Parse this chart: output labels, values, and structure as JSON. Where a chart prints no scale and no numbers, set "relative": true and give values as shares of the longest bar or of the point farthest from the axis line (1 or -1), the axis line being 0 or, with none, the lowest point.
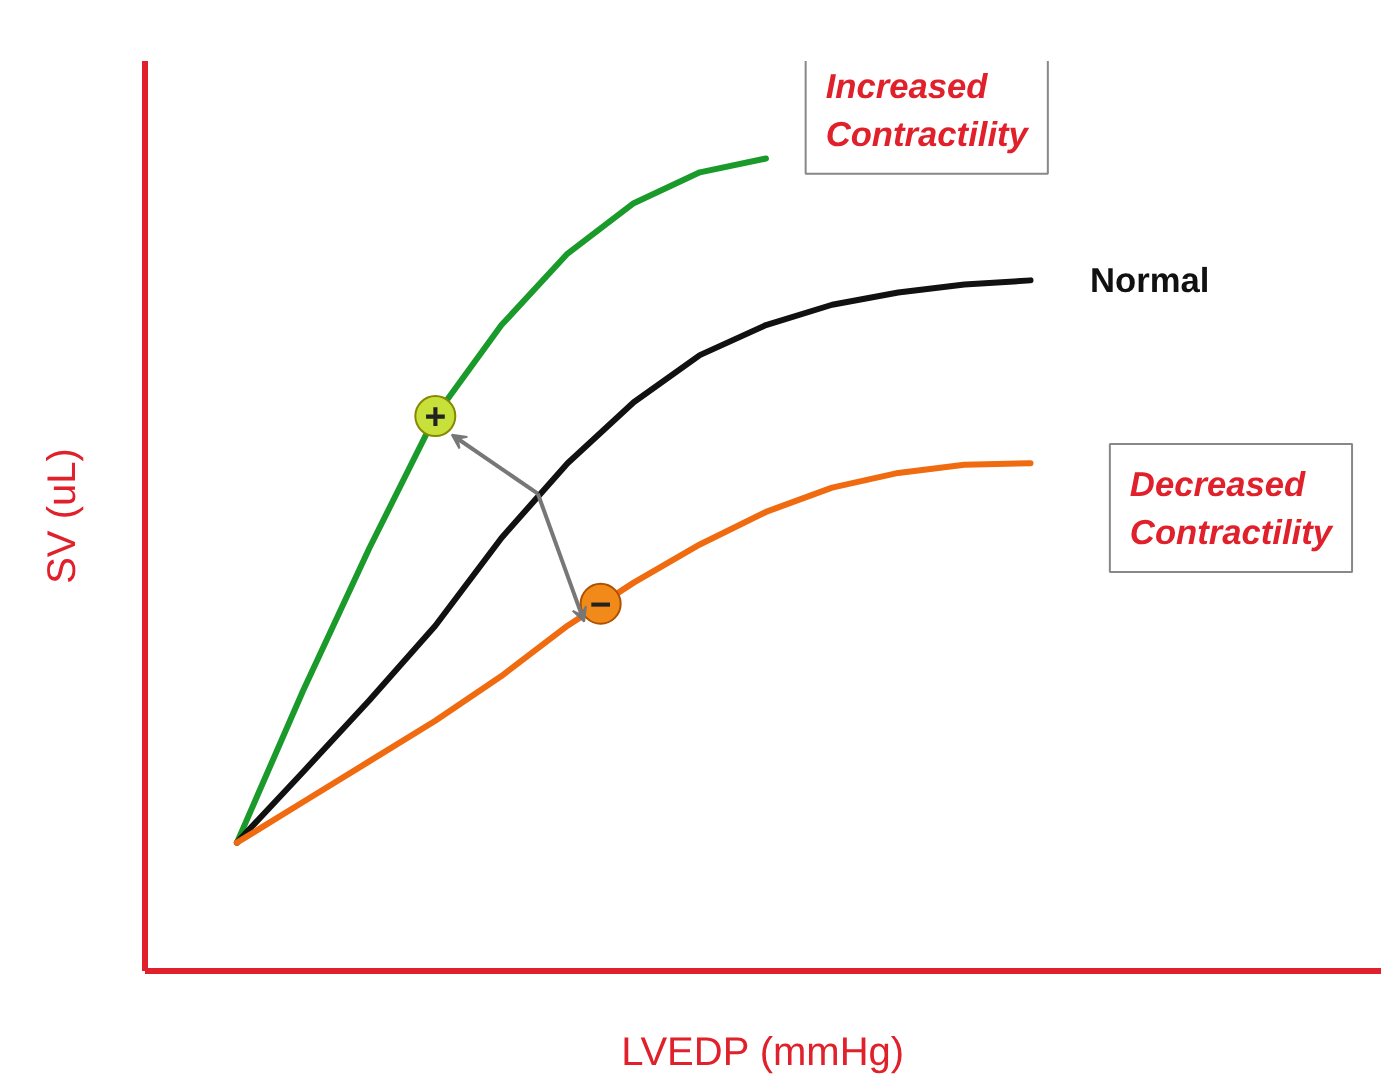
{
  "chart_data": {
    "type": "line",
    "relative": true,
    "xlabel": "LVEDP (mmHg)",
    "ylabel": "SV (uL)",
    "marker": "none",
    "line_style": "solid",
    "categories": [
      null,
      null,
      null,
      null,
      null,
      null,
      null,
      null,
      null,
      null,
      null,
      null,
      null
    ],
    "series": [
      {
        "name": "Increased Contractility",
        "color": "#1a9a2a",
        "values": [
          0.158,
          0.345,
          0.52,
          0.683,
          0.795,
          0.883,
          0.945,
          0.983,
          1.0,
          null,
          null,
          null,
          null
        ]
      },
      {
        "name": "Normal",
        "color": "#111111",
        "values": [
          0.158,
          0.245,
          0.333,
          0.425,
          0.533,
          0.625,
          0.7,
          0.758,
          0.795,
          0.82,
          0.835,
          0.845,
          0.85
        ]
      },
      {
        "name": "Decreased Contractility",
        "color": "#f06a0f",
        "values": [
          0.158,
          0.208,
          0.258,
          0.308,
          0.363,
          0.425,
          0.478,
          0.525,
          0.565,
          0.595,
          0.613,
          0.623,
          0.625
        ]
      }
    ],
    "annotations": [
      "+",
      "−"
    ]
  }
}
